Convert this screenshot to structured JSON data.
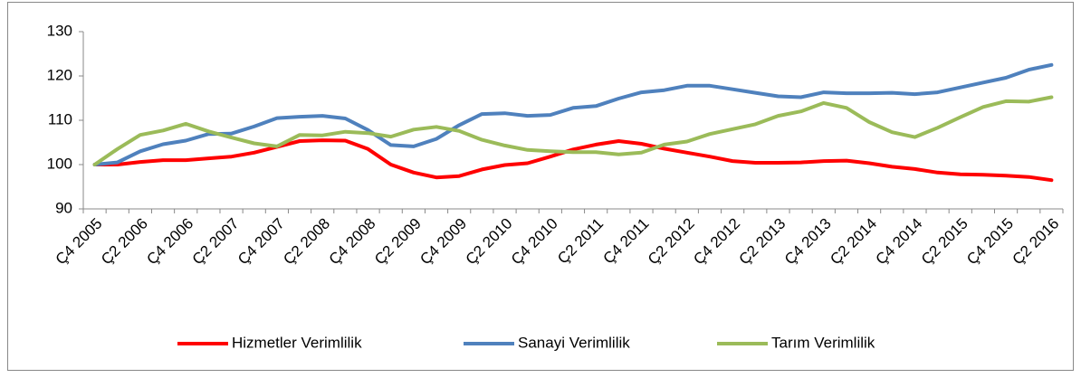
{
  "chart_data": {
    "type": "line",
    "categories": [
      "Ç4 2005",
      null,
      "Ç2 2006",
      null,
      "Ç4 2006",
      null,
      "Ç2 2007",
      null,
      "Ç4 2007",
      null,
      "Ç2 2008",
      null,
      "Ç4 2008",
      null,
      "Ç2 2009",
      null,
      "Ç4 2009",
      null,
      "Ç2 2010",
      null,
      "Ç4 2010",
      null,
      "Ç2 2011",
      null,
      "Ç4 2011",
      null,
      "Ç2 2012",
      null,
      "Ç4 2012",
      null,
      "Ç2 2013",
      null,
      "Ç4 2013",
      null,
      "Ç2 2014",
      null,
      "Ç4 2014",
      null,
      "Ç2 2015",
      null,
      "Ç4 2015",
      null,
      "Ç2 2016"
    ],
    "series": [
      {
        "name": "Hizmetler Verimlilik",
        "color": "#ff0000",
        "values": [
          100,
          100,
          100.6,
          101,
          101,
          101.4,
          101.8,
          102.7,
          104,
          105.3,
          105.5,
          105.4,
          103.5,
          100,
          98.2,
          97.1,
          97.4,
          98.9,
          99.9,
          100.3,
          101.8,
          103.4,
          104.5,
          105.3,
          104.7,
          103.6,
          102.7,
          101.8,
          100.8,
          100.4,
          100.4,
          100.5,
          100.8,
          100.9,
          100.3,
          99.5,
          99,
          98.2,
          97.8,
          97.7,
          97.5,
          97.2,
          96.5
        ]
      },
      {
        "name": "Sanayi Verimlilik",
        "color": "#4f81bd",
        "values": [
          100,
          100.5,
          103,
          104.6,
          105.4,
          106.9,
          107,
          108.6,
          110.5,
          110.8,
          111,
          110.4,
          107.8,
          104.4,
          104.1,
          105.8,
          108.9,
          111.4,
          111.6,
          111,
          111.2,
          112.8,
          113.2,
          114.9,
          116.3,
          116.8,
          117.8,
          117.8,
          117,
          116.2,
          115.4,
          115.2,
          116.3,
          116.1,
          116.1,
          116.2,
          115.9,
          116.3,
          117.4,
          118.5,
          119.6,
          121.4,
          122.5
        ]
      },
      {
        "name": "Tarım Verimlilik",
        "color": "#9bbb59",
        "values": [
          100,
          103.5,
          106.7,
          107.7,
          109.2,
          107.5,
          106.1,
          104.8,
          104.1,
          106.7,
          106.6,
          107.4,
          107.1,
          106.3,
          107.9,
          108.5,
          107.6,
          105.6,
          104.3,
          103.3,
          103,
          102.8,
          102.8,
          102.3,
          102.7,
          104.5,
          105.2,
          106.9,
          108,
          109.1,
          111,
          112,
          113.9,
          112.8,
          109.6,
          107.3,
          106.2,
          108.3,
          110.7,
          113,
          114.3,
          114.2,
          115.2
        ]
      }
    ],
    "ylim": [
      90,
      130
    ],
    "yticks": [
      90,
      100,
      110,
      120,
      130
    ],
    "legend": "bottom",
    "grid": false
  }
}
